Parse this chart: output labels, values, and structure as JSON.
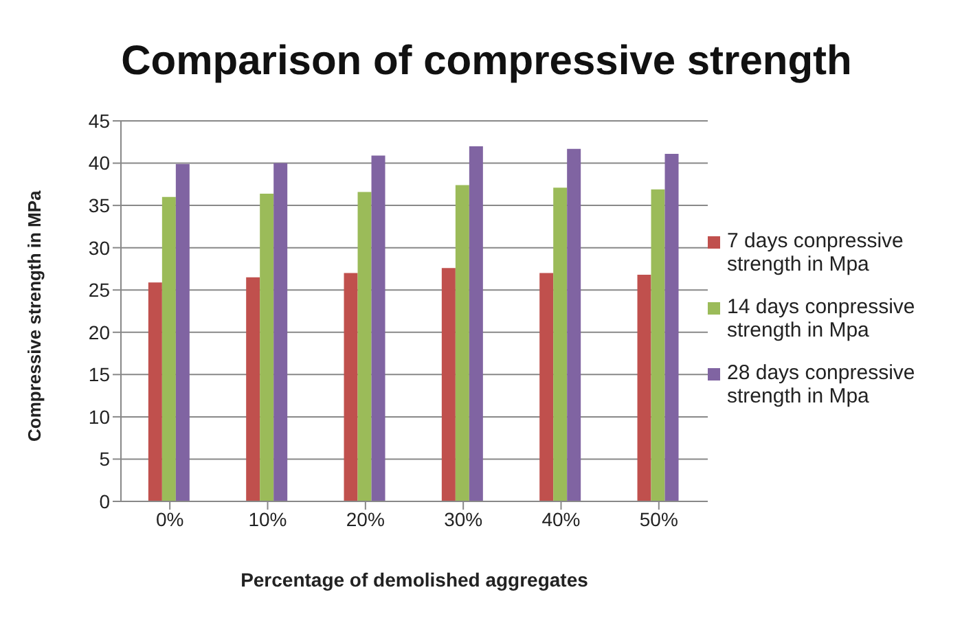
{
  "chart_data": {
    "type": "bar",
    "title": "Comparison of compressive strength",
    "xlabel": "Percentage of demolished aggregates",
    "ylabel": "Compressive strength in MPa",
    "categories": [
      "0%",
      "10%",
      "20%",
      "30%",
      "40%",
      "50%"
    ],
    "series": [
      {
        "name": "7 days conpressive strength in Mpa",
        "color": "#c0504d",
        "values": [
          25.9,
          26.5,
          27.0,
          27.6,
          27.0,
          26.8
        ]
      },
      {
        "name": "14 days conpressive strength in Mpa",
        "color": "#9bbb59",
        "values": [
          36.0,
          36.4,
          36.6,
          37.4,
          37.1,
          36.9
        ]
      },
      {
        "name": "28 days conpressive strength in Mpa",
        "color": "#8064a2",
        "values": [
          39.9,
          40.0,
          40.9,
          42.0,
          41.7,
          41.1
        ]
      }
    ],
    "ylim": [
      0,
      45
    ],
    "yticks": [
      0,
      5,
      10,
      15,
      20,
      25,
      30,
      35,
      40,
      45
    ],
    "grid": "y",
    "legend": "right"
  }
}
